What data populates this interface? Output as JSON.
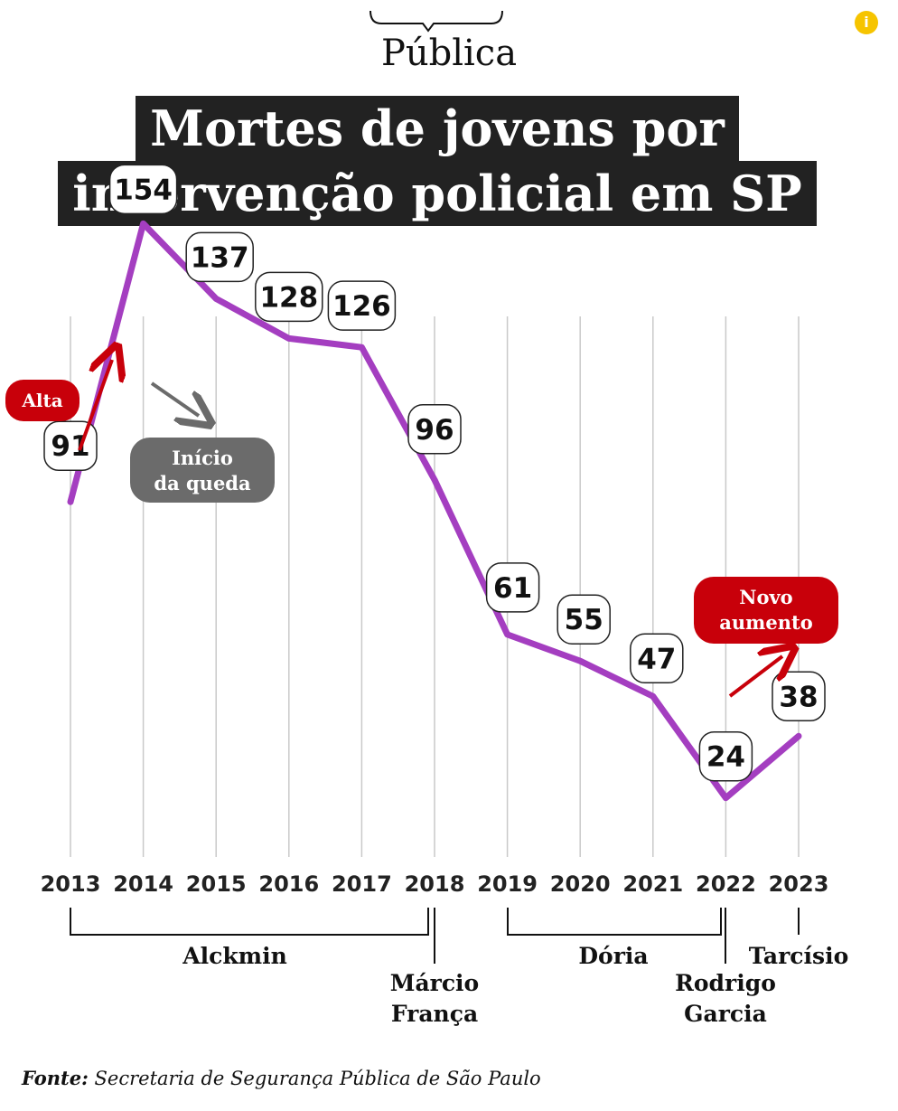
{
  "brand": {
    "name": "Pública"
  },
  "info_icon": "info-icon",
  "title": {
    "line1": "Mortes de jovens por",
    "line2": "intervenção policial em SP"
  },
  "colors": {
    "line": "#a43ec0",
    "title_bg": "#222222",
    "alert_red": "#c8000a",
    "note_gray": "#6b6b6b",
    "accent_yellow": "#f6c400"
  },
  "chart_data": {
    "type": "line",
    "categories": [
      "2013",
      "2014",
      "2015",
      "2016",
      "2017",
      "2018",
      "2019",
      "2020",
      "2021",
      "2022",
      "2023"
    ],
    "values": [
      91,
      154,
      137,
      128,
      126,
      96,
      61,
      55,
      47,
      24,
      38
    ],
    "data_labels": [
      "91",
      "154",
      "137",
      "128",
      "126",
      "96",
      "61",
      "55",
      "47",
      "24",
      "38"
    ],
    "ylim": [
      0,
      160
    ],
    "grid": "vertical",
    "title": "Mortes de jovens por intervenção policial em SP",
    "annotations": {
      "alta": "Alta",
      "inicio_queda_1": "Início",
      "inicio_queda_2": "da queda",
      "novo_aumento_1": "Novo",
      "novo_aumento_2": "aumento"
    },
    "governors": [
      {
        "name": "Alckmin",
        "years": "2013–2018"
      },
      {
        "name_1": "Márcio",
        "name_2": "França",
        "years": "2018"
      },
      {
        "name": "Dória",
        "years": "2019–2022"
      },
      {
        "name_1": "Rodrigo",
        "name_2": "Garcia",
        "years": "2022"
      },
      {
        "name": "Tarcísio",
        "years": "2023"
      }
    ]
  },
  "source": {
    "label": "Fonte:",
    "text": " Secretaria de Segurança Pública de São Paulo"
  }
}
